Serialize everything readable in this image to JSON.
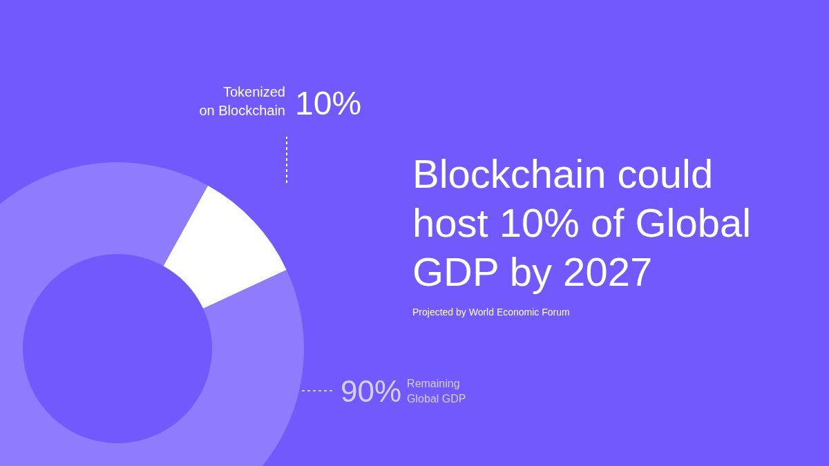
{
  "chart_data": {
    "type": "donut",
    "title": "Blockchain could host 10% of Global GDP by 2027",
    "categories": [
      "Tokenized on Blockchain",
      "Remaining Global GDP"
    ],
    "values": [
      10,
      90
    ],
    "colors": [
      "#ffffff",
      "#8e7bfd"
    ],
    "value_labels": [
      "10%",
      "90%"
    ],
    "annotations": [
      "Projected by World Economic Forum"
    ]
  }
}
